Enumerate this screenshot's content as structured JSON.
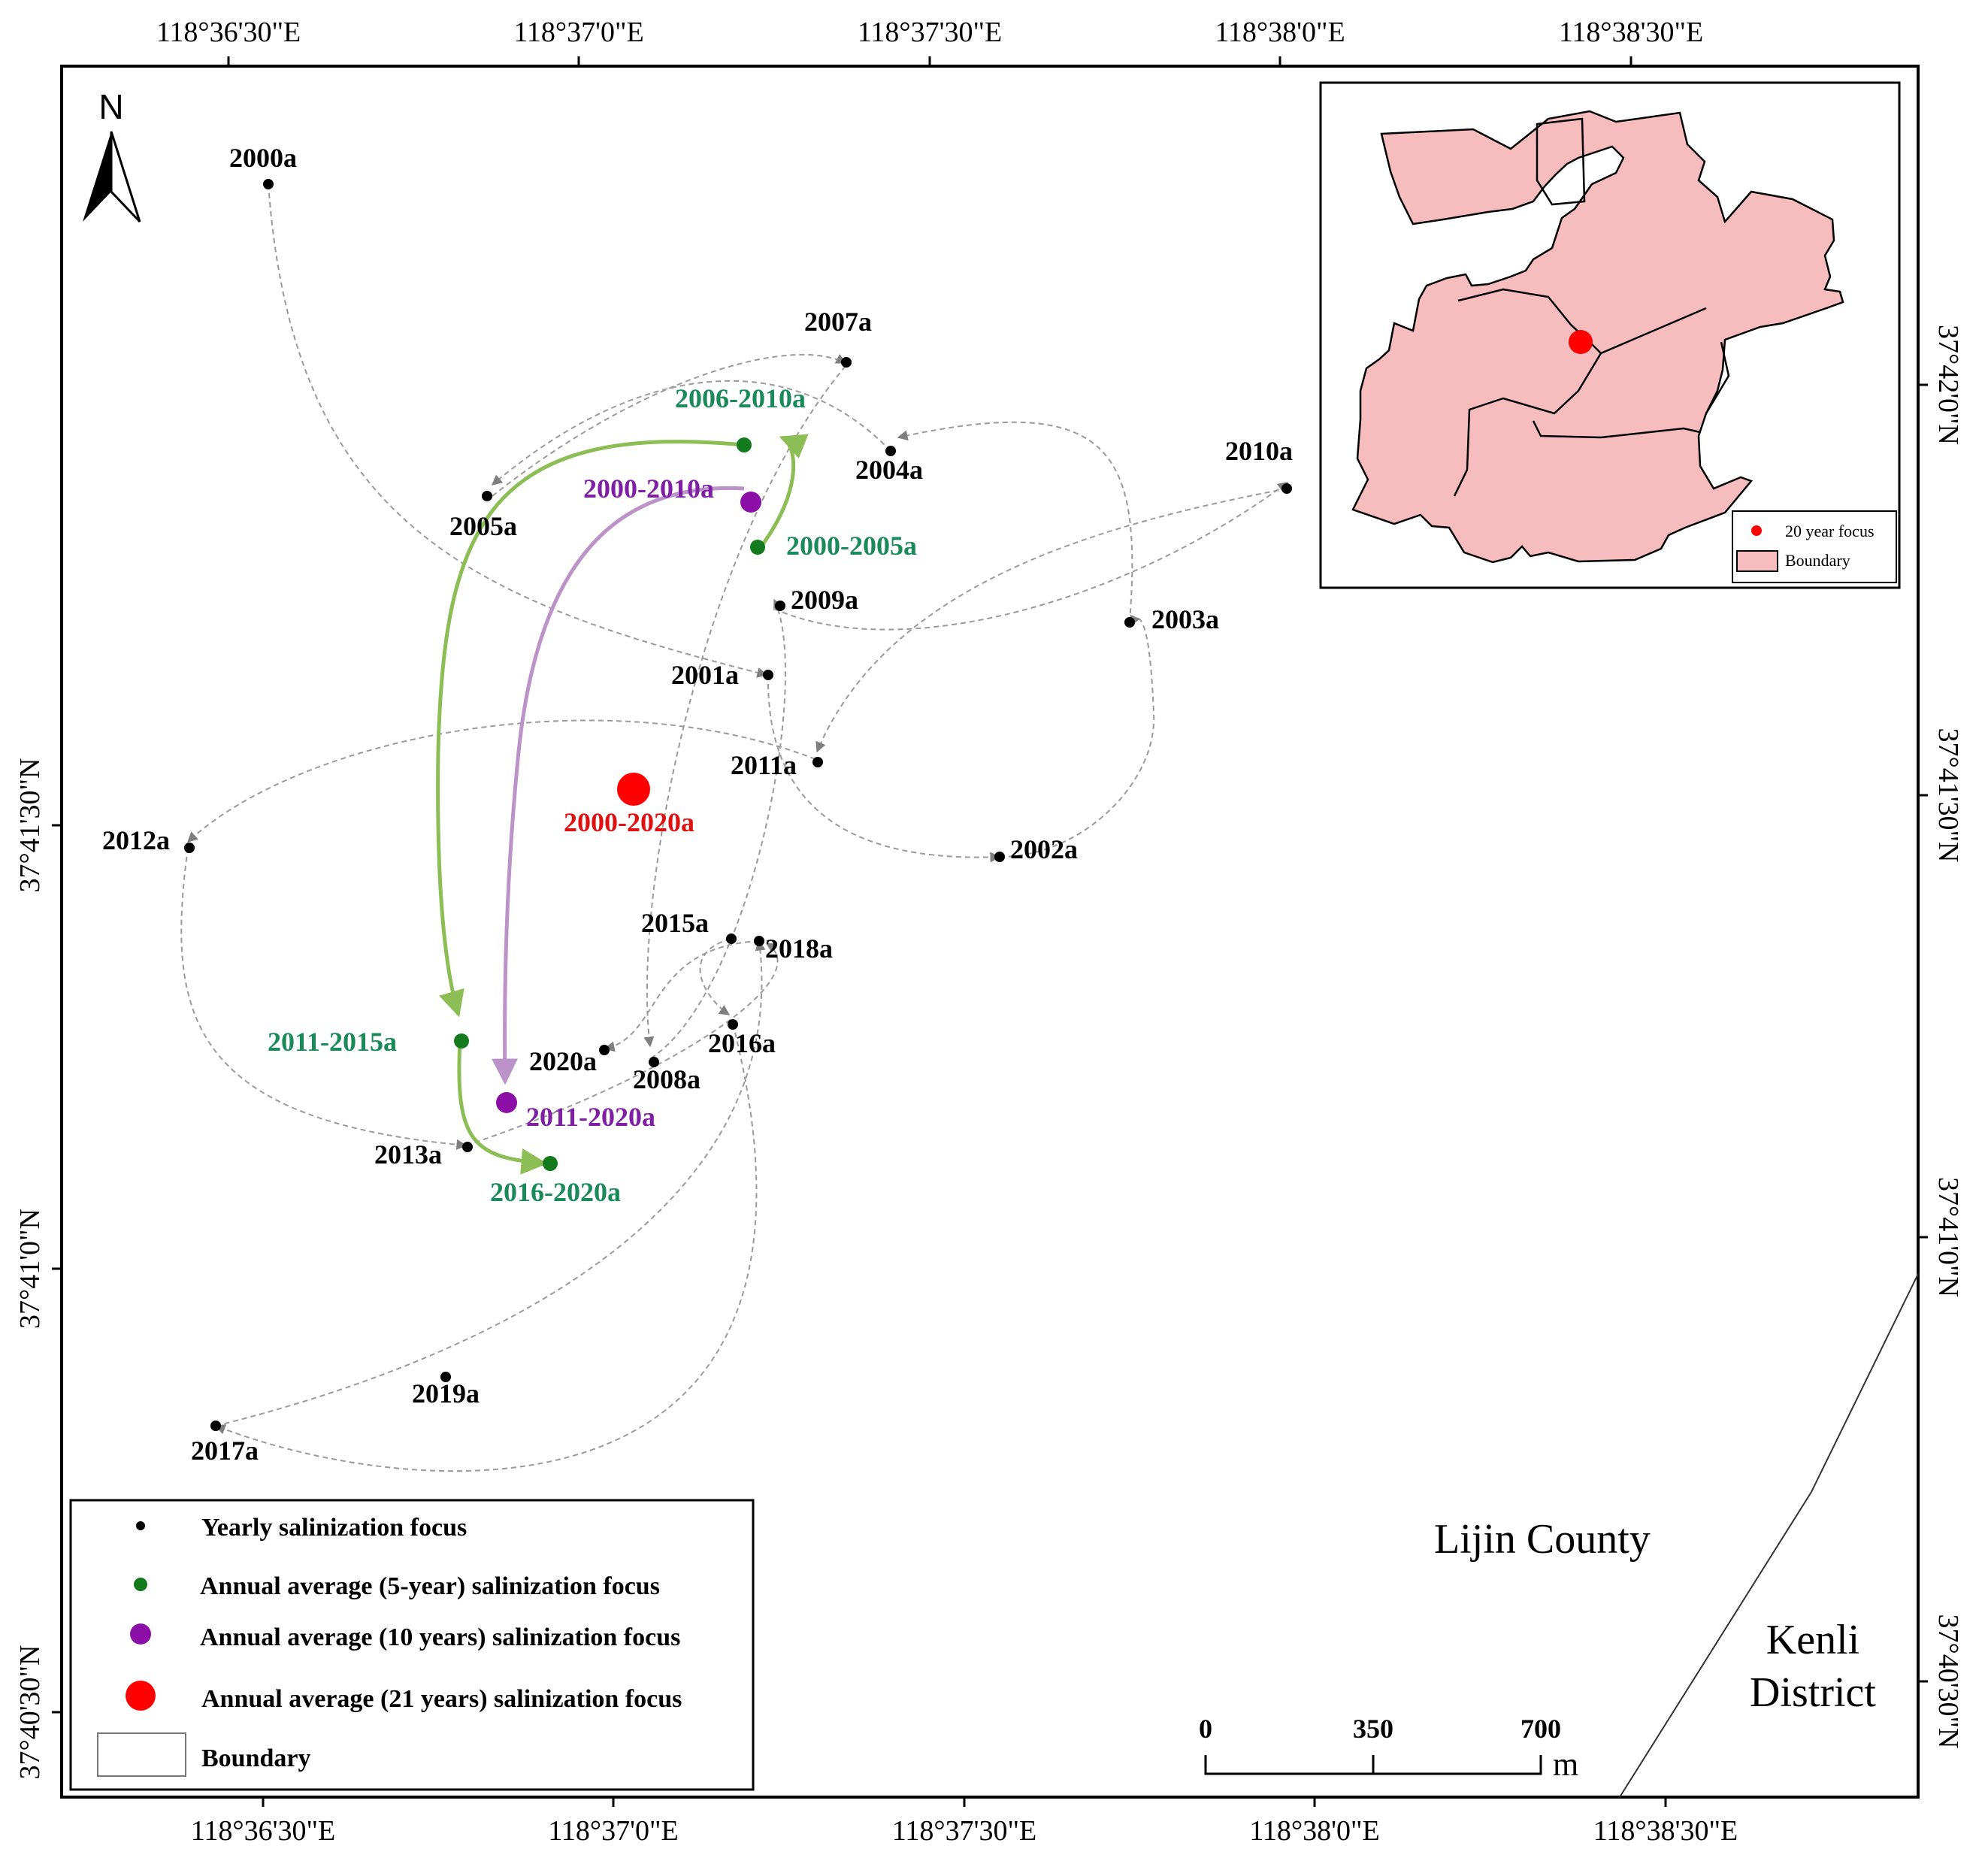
{
  "colors": {
    "yearly": "#000000",
    "five_year": "#137a1d",
    "ten_year": "#8b0fa6",
    "twenty_one_year": "#ff0000",
    "five_year_label": "#1a8a5a",
    "ten_year_label": "#7e1fa6",
    "five_year_arrow": "#8dbd55",
    "ten_year_arrow": "#bb93c9",
    "boundary_fill": "#f7bcbd"
  },
  "north": {
    "label": "N"
  },
  "graticule": {
    "top_lon": [
      "118°36'30\"E",
      "118°37'0\"E",
      "118°37'30\"E",
      "118°38'0\"E",
      "118°38'30\"E"
    ],
    "bottom_lon": [
      "118°36'30\"E",
      "118°37'0\"E",
      "118°37'30\"E",
      "118°38'0\"E",
      "118°38'30\"E"
    ],
    "left_lat": [
      "37°41'30\"N",
      "37°41'0\"N",
      "37°40'30\"N"
    ],
    "right_lat": [
      "37°42'0\"N",
      "37°41'30\"N",
      "37°41'0\"N",
      "37°40'30\"N"
    ]
  },
  "yearly_labels": {
    "y2000": "2000a",
    "y2001": "2001a",
    "y2002": "2002a",
    "y2003": "2003a",
    "y2004": "2004a",
    "y2005": "2005a",
    "y2007": "2007a",
    "y2008": "2008a",
    "y2009": "2009a",
    "y2010": "2010a",
    "y2011": "2011a",
    "y2012": "2012a",
    "y2013": "2013a",
    "y2015": "2015a",
    "y2016": "2016a",
    "y2017": "2017a",
    "y2018": "2018a",
    "y2019": "2019a",
    "y2020": "2020a"
  },
  "five_year_labels": {
    "p2000_2005": "2000-2005a",
    "p2006_2010": "2006-2010a",
    "p2011_2015": "2011-2015a",
    "p2016_2020": "2016-2020a"
  },
  "ten_year_labels": {
    "p2000_2010": "2000-2010a",
    "p2011_2020": "2011-2020a"
  },
  "twenty_one_year_label": "2000-2020a",
  "places": {
    "county": "Lijin County",
    "district_line1": "Kenli",
    "district_line2": "District"
  },
  "scale_bar": {
    "ticks": [
      "0",
      "350",
      "700"
    ],
    "unit": "m"
  },
  "legend": {
    "items": [
      "Yearly salinization focus",
      "Annual average (5-year) salinization focus",
      "Annual average (10 years) salinization focus",
      "Annual average (21 years) salinization focus",
      "Boundary"
    ]
  },
  "inset": {
    "focus_label": "20 year focus",
    "boundary_label": "Boundary"
  }
}
